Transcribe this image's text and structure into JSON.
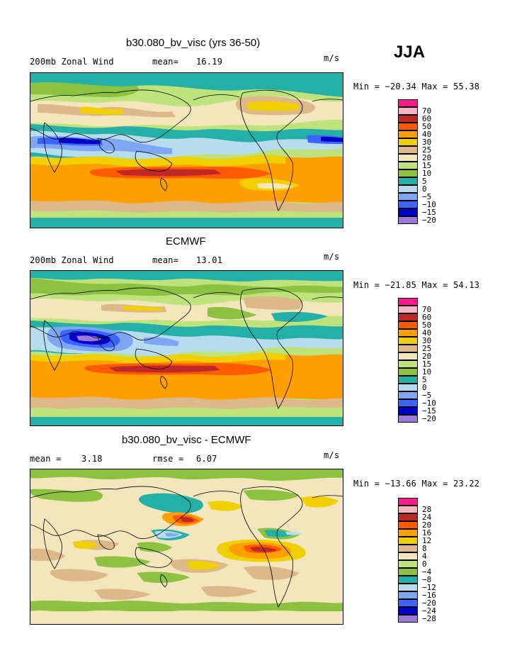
{
  "season": "JJA",
  "unit": "m/s",
  "colors": [
    "#9a79d9",
    "#0000c8",
    "#3c64ff",
    "#7fa6f2",
    "#b6dcee",
    "#24b0a6",
    "#8cc240",
    "#bfe37c",
    "#f4e6bc",
    "#dcb88a",
    "#f0d000",
    "#ffa000",
    "#ff5a00",
    "#c02828",
    "#f8b4c0",
    "#ff1a8c"
  ],
  "panels": [
    {
      "title": "b30.080_bv_visc (yrs 36-50)",
      "left_label": "200mb Zonal Wind",
      "mean_label": "mean=",
      "mean_value": "16.19",
      "unit": "m/s",
      "minmax": "Min = −20.34 Max =  55.38",
      "legend_labels": [
        "70",
        "60",
        "50",
        "40",
        "30",
        "25",
        "20",
        "15",
        "10",
        "5",
        "0",
        "−5",
        "−10",
        "−15",
        "−20"
      ]
    },
    {
      "title": "ECMWF",
      "left_label": "200mb Zonal Wind",
      "mean_label": "mean=",
      "mean_value": "13.01",
      "unit": "m/s",
      "minmax": "Min = −21.85 Max =  54.13",
      "legend_labels": [
        "70",
        "60",
        "50",
        "40",
        "30",
        "25",
        "20",
        "15",
        "10",
        "5",
        "0",
        "−5",
        "−10",
        "−15",
        "−20"
      ]
    },
    {
      "title": "b30.080_bv_visc - ECMWF",
      "left_label": "mean =",
      "left_value": "3.18",
      "mean_label": "rmse =",
      "mean_value": "6.07",
      "unit": "m/s",
      "minmax": "Min = −13.66 Max =  23.22",
      "legend_labels": [
        "28",
        "24",
        "20",
        "16",
        "12",
        "8",
        "4",
        "0",
        "−4",
        "−8",
        "−12",
        "−16",
        "−20",
        "−24",
        "−28"
      ]
    }
  ]
}
